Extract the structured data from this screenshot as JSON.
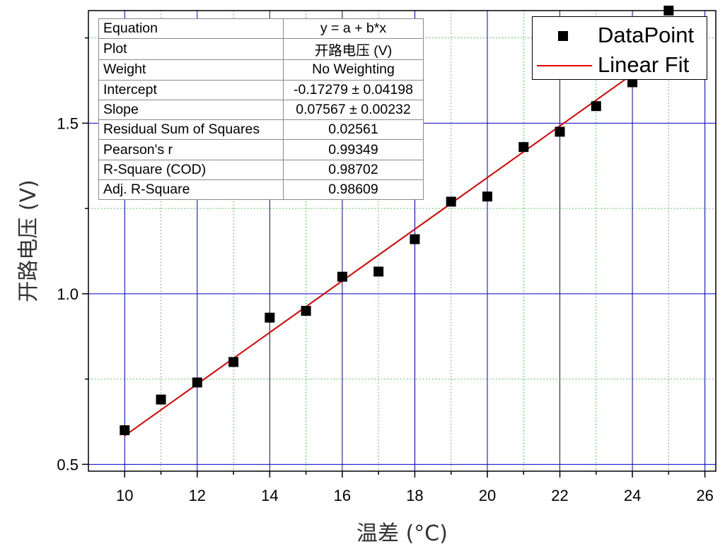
{
  "chart_data": {
    "type": "scatter",
    "xlabel": "温差 (°C)",
    "ylabel": "开路电压 (V)",
    "xlim": [
      9,
      26.3
    ],
    "ylim": [
      0.48,
      1.83
    ],
    "x_ticks": [
      10,
      12,
      14,
      16,
      18,
      20,
      22,
      24,
      26
    ],
    "y_ticks": [
      0.5,
      1.0,
      1.5
    ],
    "grid": true,
    "legend_position": "top-right",
    "series": [
      {
        "name": "DataPoint",
        "kind": "scatter",
        "marker": "square",
        "color": "#000000",
        "x": [
          10,
          11,
          12,
          13,
          14,
          15,
          16,
          17,
          18,
          19,
          20,
          21,
          22,
          23,
          24,
          25
        ],
        "y": [
          0.6,
          0.69,
          0.74,
          0.8,
          0.93,
          0.95,
          1.05,
          1.065,
          1.16,
          1.27,
          1.285,
          1.43,
          1.475,
          1.55,
          1.62,
          1.83
        ]
      },
      {
        "name": "Linear Fit",
        "kind": "line",
        "color": "#e00000",
        "intercept": -0.17279,
        "slope": 0.07567,
        "x_range": [
          10,
          25
        ]
      }
    ],
    "fit_table": [
      {
        "key": "Equation",
        "value": "y = a + b*x"
      },
      {
        "key": "Plot",
        "value": "开路电压 (V)"
      },
      {
        "key": "Weight",
        "value": "No Weighting"
      },
      {
        "key": "Intercept",
        "value": "-0.17279 ± 0.04198"
      },
      {
        "key": "Slope",
        "value": "0.07567 ± 0.00232"
      },
      {
        "key": "Residual Sum of Squares",
        "value": "0.02561"
      },
      {
        "key": "Pearson's r",
        "value": "0.99349"
      },
      {
        "key": "R-Square (COD)",
        "value": "0.98702"
      },
      {
        "key": "Adj. R-Square",
        "value": "0.98609"
      }
    ]
  },
  "colors": {
    "major_grid": "#0000cc",
    "minor_grid": "#33bb33",
    "fit_line": "#e00000",
    "axis": "#000000"
  }
}
